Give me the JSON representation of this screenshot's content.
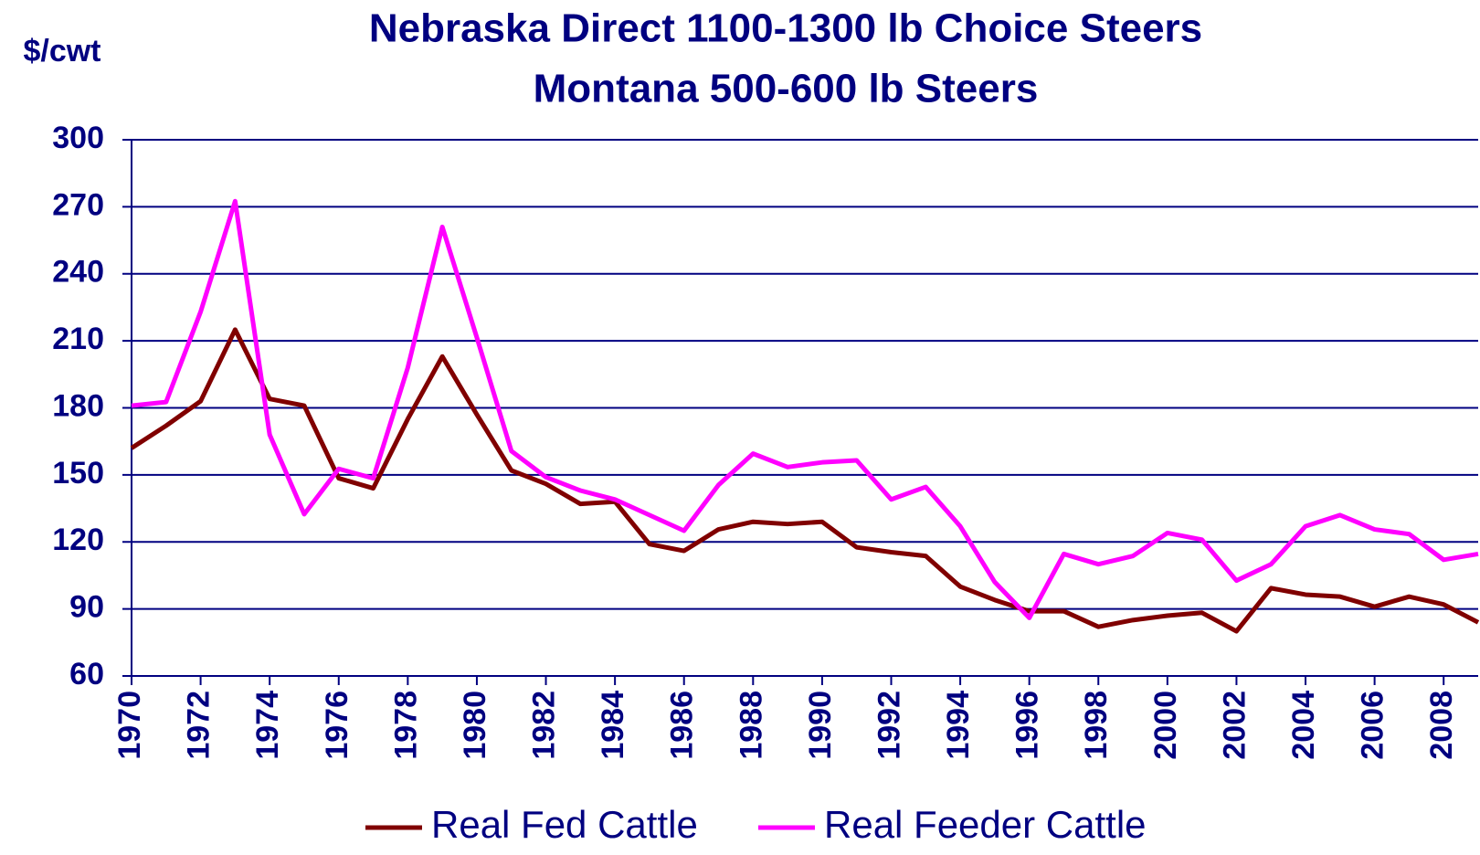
{
  "chart_data": {
    "type": "line",
    "title": "Nebraska Direct 1100-1300 lb Choice Steers",
    "subtitle": "Montana 500-600 lb Steers",
    "y_label": "$/cwt",
    "x": [
      1970,
      1971,
      1972,
      1973,
      1974,
      1975,
      1976,
      1977,
      1978,
      1979,
      1980,
      1981,
      1982,
      1983,
      1984,
      1985,
      1986,
      1987,
      1988,
      1989,
      1990,
      1991,
      1992,
      1993,
      1994,
      1995,
      1996,
      1997,
      1998,
      1999,
      2000,
      2001,
      2002,
      2003,
      2004,
      2005,
      2006,
      2007,
      2008,
      2009
    ],
    "series": [
      {
        "name": "Real Fed Cattle",
        "color": "#800000",
        "values": [
          162,
          172,
          183,
          215,
          184,
          181,
          148.5,
          144,
          175,
          203,
          177,
          152,
          146,
          137,
          138,
          119,
          116,
          125.6,
          129,
          128,
          129,
          117.6,
          115.4,
          113.7,
          100,
          94,
          89,
          89,
          82,
          85,
          87,
          88.3,
          80,
          99.3,
          96.4,
          95.5,
          91,
          95.5,
          92,
          84
        ]
      },
      {
        "name": "Real Feeder Cattle",
        "color": "#ff00ff",
        "values": [
          181,
          182.6,
          223,
          272.5,
          168,
          132.4,
          152.7,
          148.5,
          198,
          261,
          211.5,
          160.7,
          149,
          143,
          139,
          132,
          125,
          145.5,
          159.5,
          153.5,
          155.6,
          156.5,
          139,
          144.6,
          127,
          102,
          86,
          114.6,
          110,
          113.7,
          124,
          121,
          102.7,
          110,
          127,
          132,
          125.6,
          123.5,
          112,
          114.6
        ]
      }
    ],
    "xlim": [
      1970,
      2009
    ],
    "xticks": [
      1970,
      1972,
      1974,
      1976,
      1978,
      1980,
      1982,
      1984,
      1986,
      1988,
      1990,
      1992,
      1994,
      1996,
      1998,
      2000,
      2002,
      2004,
      2006,
      2008
    ],
    "ylim": [
      60,
      300
    ],
    "yticks": [
      60,
      90,
      120,
      150,
      180,
      210,
      240,
      270,
      300
    ],
    "grid": true,
    "legend": "bottom"
  }
}
